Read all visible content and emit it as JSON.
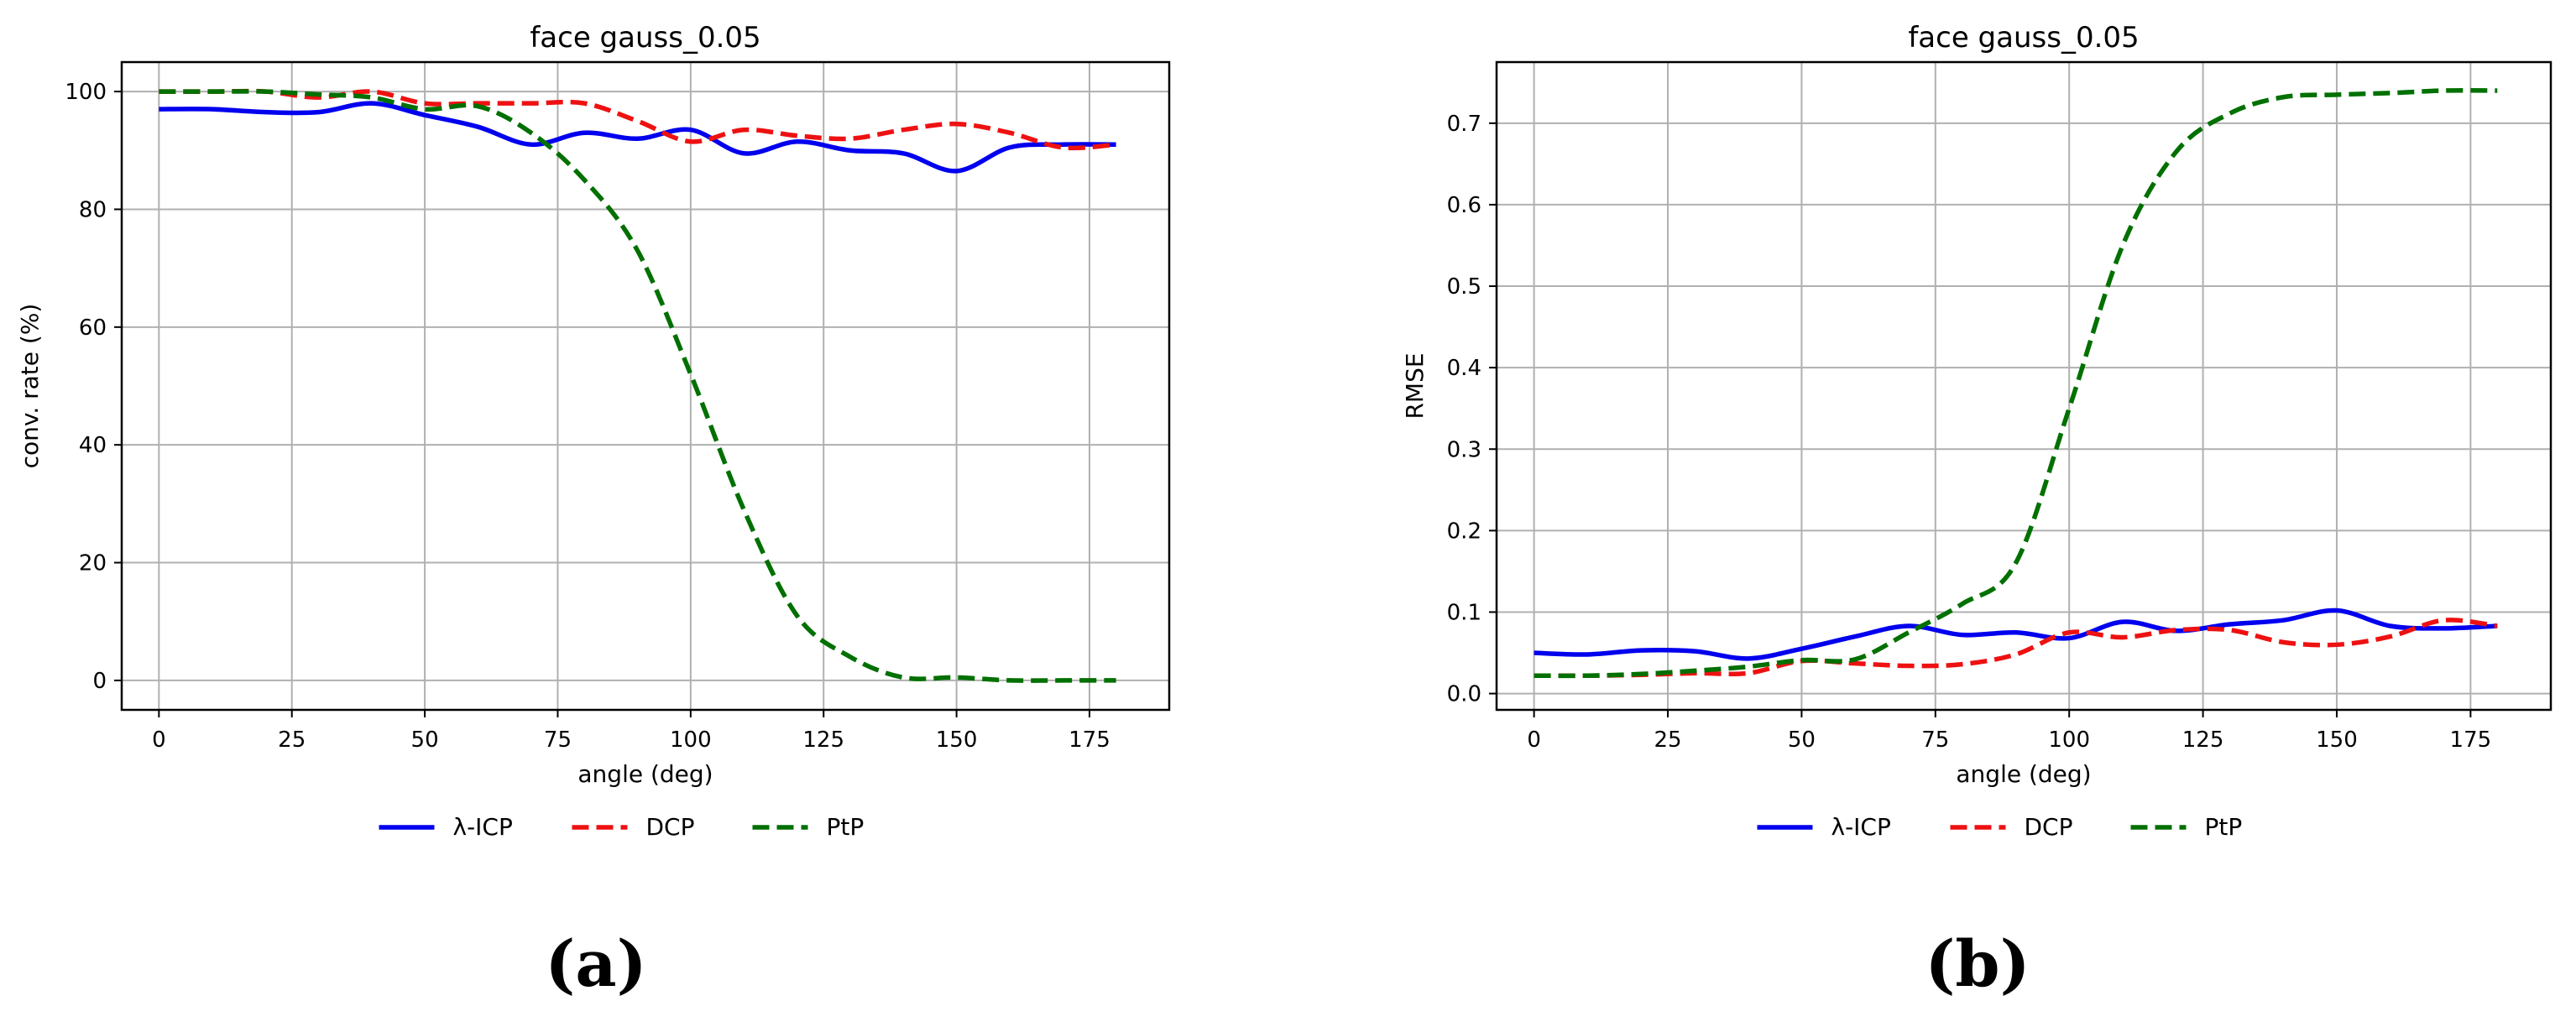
{
  "chart_data": [
    {
      "type": "line",
      "title": "face gauss_0.05",
      "xlabel": "angle (deg)",
      "ylabel": "conv. rate (%)",
      "xlim": [
        -7,
        190
      ],
      "ylim": [
        -5,
        105
      ],
      "xticks": [
        0,
        25,
        50,
        75,
        100,
        125,
        150,
        175
      ],
      "yticks": [
        0,
        20,
        40,
        60,
        80,
        100
      ],
      "grid": true,
      "legend_position": "bottom-center",
      "caption": "(a)",
      "x": [
        0,
        10,
        20,
        30,
        40,
        50,
        60,
        70,
        80,
        90,
        100,
        110,
        120,
        130,
        140,
        150,
        160,
        170,
        180
      ],
      "series": [
        {
          "name": "λ-ICP",
          "color": "#0000ee",
          "dash": "solid",
          "values": [
            97,
            97,
            96.5,
            96.5,
            98,
            96,
            94,
            91,
            93,
            92,
            93.5,
            89.5,
            91.5,
            90,
            89.5,
            86.5,
            90.5,
            91,
            91
          ]
        },
        {
          "name": "DCP",
          "color": "#ee1111",
          "dash": "dashed",
          "values": [
            100,
            100,
            100,
            99,
            100,
            98,
            98,
            98,
            98,
            95,
            91.5,
            93.5,
            92.5,
            92,
            93.5,
            94.5,
            93,
            90.5,
            91
          ]
        },
        {
          "name": "PtP",
          "color": "#007000",
          "dash": "dashed",
          "values": [
            100,
            100,
            100,
            99.5,
            99,
            97,
            97.5,
            93,
            85,
            73,
            52,
            29,
            11,
            4,
            0.5,
            0.5,
            0,
            0,
            0
          ]
        }
      ]
    },
    {
      "type": "line",
      "title": "face gauss_0.05",
      "xlabel": "angle (deg)",
      "ylabel": "RMSE",
      "xlim": [
        -7,
        190
      ],
      "ylim": [
        -0.02,
        0.775
      ],
      "xticks": [
        0,
        25,
        50,
        75,
        100,
        125,
        150,
        175
      ],
      "yticks": [
        0.0,
        0.1,
        0.2,
        0.3,
        0.4,
        0.5,
        0.6,
        0.7
      ],
      "grid": true,
      "legend_position": "bottom-center",
      "caption": "(b)",
      "x": [
        0,
        10,
        20,
        30,
        40,
        50,
        60,
        70,
        80,
        90,
        100,
        110,
        120,
        130,
        140,
        150,
        160,
        170,
        180
      ],
      "series": [
        {
          "name": "λ-ICP",
          "color": "#0000ee",
          "dash": "solid",
          "values": [
            0.05,
            0.048,
            0.053,
            0.052,
            0.043,
            0.055,
            0.07,
            0.083,
            0.072,
            0.075,
            0.068,
            0.088,
            0.077,
            0.085,
            0.09,
            0.102,
            0.083,
            0.08,
            0.083
          ]
        },
        {
          "name": "DCP",
          "color": "#ee1111",
          "dash": "dashed",
          "values": [
            0.022,
            0.022,
            0.023,
            0.025,
            0.025,
            0.04,
            0.037,
            0.034,
            0.036,
            0.048,
            0.075,
            0.069,
            0.078,
            0.078,
            0.063,
            0.06,
            0.07,
            0.09,
            0.083
          ]
        },
        {
          "name": "PtP",
          "color": "#007000",
          "dash": "dashed",
          "values": [
            0.022,
            0.022,
            0.024,
            0.028,
            0.033,
            0.041,
            0.042,
            0.075,
            0.11,
            0.16,
            0.35,
            0.55,
            0.665,
            0.712,
            0.732,
            0.735,
            0.737,
            0.74,
            0.74
          ]
        }
      ]
    }
  ]
}
